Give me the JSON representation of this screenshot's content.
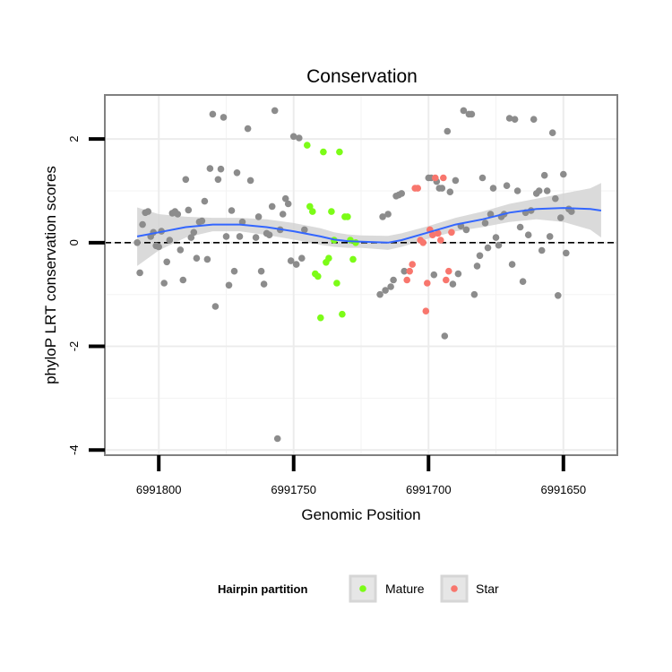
{
  "chart_data": {
    "type": "scatter",
    "title": "Conservation",
    "xlabel": "Genomic Position",
    "ylabel": "phyloP LRT conservation scores",
    "x_reversed": true,
    "xlim": [
      6991820,
      6991630
    ],
    "ylim": [
      -4.1,
      2.85
    ],
    "x_ticks": [
      6991800,
      6991750,
      6991700,
      6991650
    ],
    "x_tick_labels": [
      "6991800",
      "6991750",
      "6991700",
      "6991650"
    ],
    "y_ticks": [
      -4,
      -2,
      0,
      2
    ],
    "y_tick_labels": [
      "-4",
      "-2",
      "0",
      "2"
    ],
    "reference_line": 0,
    "grid": true,
    "legend": {
      "title": "Hairpin partition",
      "position": "bottom",
      "entries": [
        {
          "label": "Mature",
          "color": "#7CFC17"
        },
        {
          "label": "Star",
          "color": "#F8766D"
        }
      ]
    },
    "colors": {
      "other": "#8c8c8c",
      "Mature": "#7CFC17",
      "Star": "#F8766D",
      "smooth": "#3366FF",
      "ribbon": "#d3d3d3"
    },
    "series": [
      {
        "name": "Other",
        "points": [
          [
            6991808,
            0.0
          ],
          [
            6991807,
            -0.58
          ],
          [
            6991806,
            0.35
          ],
          [
            6991805,
            0.58
          ],
          [
            6991804,
            0.6
          ],
          [
            6991803,
            0.12
          ],
          [
            6991802,
            0.2
          ],
          [
            6991801,
            -0.06
          ],
          [
            6991800,
            -0.08
          ],
          [
            6991799,
            0.22
          ],
          [
            6991798,
            -0.78
          ],
          [
            6991797,
            -0.37
          ],
          [
            6991796,
            0.05
          ],
          [
            6991795,
            0.57
          ],
          [
            6991794,
            0.6
          ],
          [
            6991793,
            0.55
          ],
          [
            6991792,
            -0.14
          ],
          [
            6991791,
            -0.72
          ],
          [
            6991790,
            1.22
          ],
          [
            6991789,
            0.63
          ],
          [
            6991788,
            0.1
          ],
          [
            6991787,
            0.2
          ],
          [
            6991786,
            -0.3
          ],
          [
            6991785,
            0.4
          ],
          [
            6991784,
            0.42
          ],
          [
            6991783,
            0.8
          ],
          [
            6991782,
            -0.32
          ],
          [
            6991781,
            1.43
          ],
          [
            6991780,
            2.48
          ],
          [
            6991779,
            -1.23
          ],
          [
            6991778,
            1.22
          ],
          [
            6991777,
            1.42
          ],
          [
            6991776,
            2.42
          ],
          [
            6991775,
            0.12
          ],
          [
            6991774,
            -0.82
          ],
          [
            6991773,
            0.62
          ],
          [
            6991772,
            -0.55
          ],
          [
            6991771,
            1.35
          ],
          [
            6991770,
            0.12
          ],
          [
            6991769,
            0.4
          ],
          [
            6991767,
            2.2
          ],
          [
            6991766,
            1.2
          ],
          [
            6991764,
            0.1
          ],
          [
            6991763,
            0.5
          ],
          [
            6991762,
            -0.55
          ],
          [
            6991761,
            -0.8
          ],
          [
            6991760,
            0.18
          ],
          [
            6991759,
            0.15
          ],
          [
            6991758,
            0.7
          ],
          [
            6991757,
            2.55
          ],
          [
            6991756,
            -3.78
          ],
          [
            6991755,
            0.25
          ],
          [
            6991754,
            0.55
          ],
          [
            6991753,
            0.85
          ],
          [
            6991752,
            0.75
          ],
          [
            6991751,
            -0.35
          ],
          [
            6991750,
            2.05
          ],
          [
            6991749,
            -0.42
          ],
          [
            6991748,
            2.02
          ],
          [
            6991747,
            -0.3
          ],
          [
            6991746,
            0.25
          ],
          [
            6991718,
            -1.0
          ],
          [
            6991717,
            0.5
          ],
          [
            6991716,
            -0.92
          ],
          [
            6991715,
            0.55
          ],
          [
            6991714,
            -0.85
          ],
          [
            6991713,
            -0.72
          ],
          [
            6991712,
            0.9
          ],
          [
            6991711,
            0.92
          ],
          [
            6991710,
            0.95
          ],
          [
            6991709,
            -0.55
          ],
          [
            6991700,
            1.25
          ],
          [
            6991699,
            1.25
          ],
          [
            6991698,
            -0.62
          ],
          [
            6991697,
            1.18
          ],
          [
            6991696,
            1.05
          ],
          [
            6991695,
            1.05
          ],
          [
            6991694,
            -1.8
          ],
          [
            6991693,
            2.15
          ],
          [
            6991692,
            0.98
          ],
          [
            6991691,
            -0.8
          ],
          [
            6991690,
            1.2
          ],
          [
            6991689,
            -0.6
          ],
          [
            6991688,
            0.32
          ],
          [
            6991687,
            2.55
          ],
          [
            6991686,
            0.25
          ],
          [
            6991685,
            2.48
          ],
          [
            6991684,
            2.48
          ],
          [
            6991683,
            -1.0
          ],
          [
            6991682,
            -0.45
          ],
          [
            6991681,
            -0.25
          ],
          [
            6991680,
            1.25
          ],
          [
            6991679,
            0.38
          ],
          [
            6991678,
            -0.1
          ],
          [
            6991677,
            0.55
          ],
          [
            6991676,
            1.05
          ],
          [
            6991675,
            0.1
          ],
          [
            6991674,
            -0.05
          ],
          [
            6991673,
            0.5
          ],
          [
            6991672,
            0.55
          ],
          [
            6991671,
            1.1
          ],
          [
            6991670,
            2.4
          ],
          [
            6991669,
            -0.42
          ],
          [
            6991668,
            2.38
          ],
          [
            6991667,
            1.0
          ],
          [
            6991666,
            0.3
          ],
          [
            6991665,
            -0.75
          ],
          [
            6991664,
            0.58
          ],
          [
            6991663,
            0.15
          ],
          [
            6991662,
            0.62
          ],
          [
            6991661,
            2.38
          ],
          [
            6991660,
            0.95
          ],
          [
            6991659,
            1.0
          ],
          [
            6991658,
            -0.15
          ],
          [
            6991657,
            1.3
          ],
          [
            6991656,
            1.0
          ],
          [
            6991655,
            0.12
          ],
          [
            6991654,
            2.12
          ],
          [
            6991653,
            0.85
          ],
          [
            6991652,
            -1.02
          ],
          [
            6991651,
            0.48
          ],
          [
            6991650,
            1.32
          ],
          [
            6991649,
            -0.2
          ],
          [
            6991648,
            0.65
          ],
          [
            6991647,
            0.6
          ]
        ]
      },
      {
        "name": "Mature",
        "points": [
          [
            6991745,
            1.88
          ],
          [
            6991744,
            0.7
          ],
          [
            6991743,
            0.6
          ],
          [
            6991742,
            -0.6
          ],
          [
            6991741,
            -0.65
          ],
          [
            6991740,
            -1.45
          ],
          [
            6991739,
            1.75
          ],
          [
            6991738,
            -0.38
          ],
          [
            6991737,
            -0.3
          ],
          [
            6991736,
            0.6
          ],
          [
            6991735,
            0.05
          ],
          [
            6991734,
            -0.78
          ],
          [
            6991733,
            1.75
          ],
          [
            6991732,
            -1.38
          ],
          [
            6991731,
            0.5
          ],
          [
            6991730,
            0.5
          ],
          [
            6991729,
            0.05
          ],
          [
            6991728,
            -0.32
          ],
          [
            6991727,
            0.0
          ]
        ]
      },
      {
        "name": "Star",
        "points": [
          [
            6991708,
            -0.72
          ],
          [
            6991707,
            -0.55
          ],
          [
            6991706,
            -0.42
          ],
          [
            6991705,
            1.05
          ],
          [
            6991704,
            1.05
          ],
          [
            6991703,
            0.05
          ],
          [
            6991702,
            0.0
          ],
          [
            6991701,
            -1.32
          ],
          [
            6991700.5,
            -0.78
          ],
          [
            6991699.5,
            0.25
          ],
          [
            6991698.5,
            0.15
          ],
          [
            6991697.5,
            1.25
          ],
          [
            6991696.5,
            0.18
          ],
          [
            6991695.5,
            0.05
          ],
          [
            6991694.5,
            1.25
          ],
          [
            6991693.5,
            -0.72
          ],
          [
            6991692.5,
            -0.55
          ],
          [
            6991691.5,
            0.2
          ]
        ]
      },
      {
        "name": "Smooth",
        "type": "line",
        "points": [
          [
            6991808,
            0.12
          ],
          [
            6991800,
            0.2
          ],
          [
            6991790,
            0.3
          ],
          [
            6991780,
            0.35
          ],
          [
            6991770,
            0.35
          ],
          [
            6991760,
            0.3
          ],
          [
            6991750,
            0.22
          ],
          [
            6991740,
            0.12
          ],
          [
            6991735,
            0.06
          ],
          [
            6991730,
            0.03
          ],
          [
            6991725,
            0.02
          ],
          [
            6991715,
            0.0
          ],
          [
            6991710,
            0.05
          ],
          [
            6991700,
            0.2
          ],
          [
            6991690,
            0.35
          ],
          [
            6991680,
            0.45
          ],
          [
            6991670,
            0.58
          ],
          [
            6991660,
            0.65
          ],
          [
            6991650,
            0.67
          ],
          [
            6991640,
            0.65
          ],
          [
            6991636,
            0.62
          ]
        ],
        "upper": [
          0.68,
          0.55,
          0.5,
          0.48,
          0.48,
          0.45,
          0.38,
          0.28,
          0.2,
          0.16,
          0.14,
          0.13,
          0.18,
          0.32,
          0.48,
          0.6,
          0.75,
          0.85,
          0.95,
          1.05,
          1.15
        ],
        "lower": [
          -0.45,
          -0.15,
          0.1,
          0.22,
          0.22,
          0.15,
          0.06,
          -0.04,
          -0.08,
          -0.1,
          -0.1,
          -0.14,
          -0.08,
          0.08,
          0.22,
          0.3,
          0.4,
          0.45,
          0.4,
          0.25,
          0.1
        ]
      }
    ]
  }
}
